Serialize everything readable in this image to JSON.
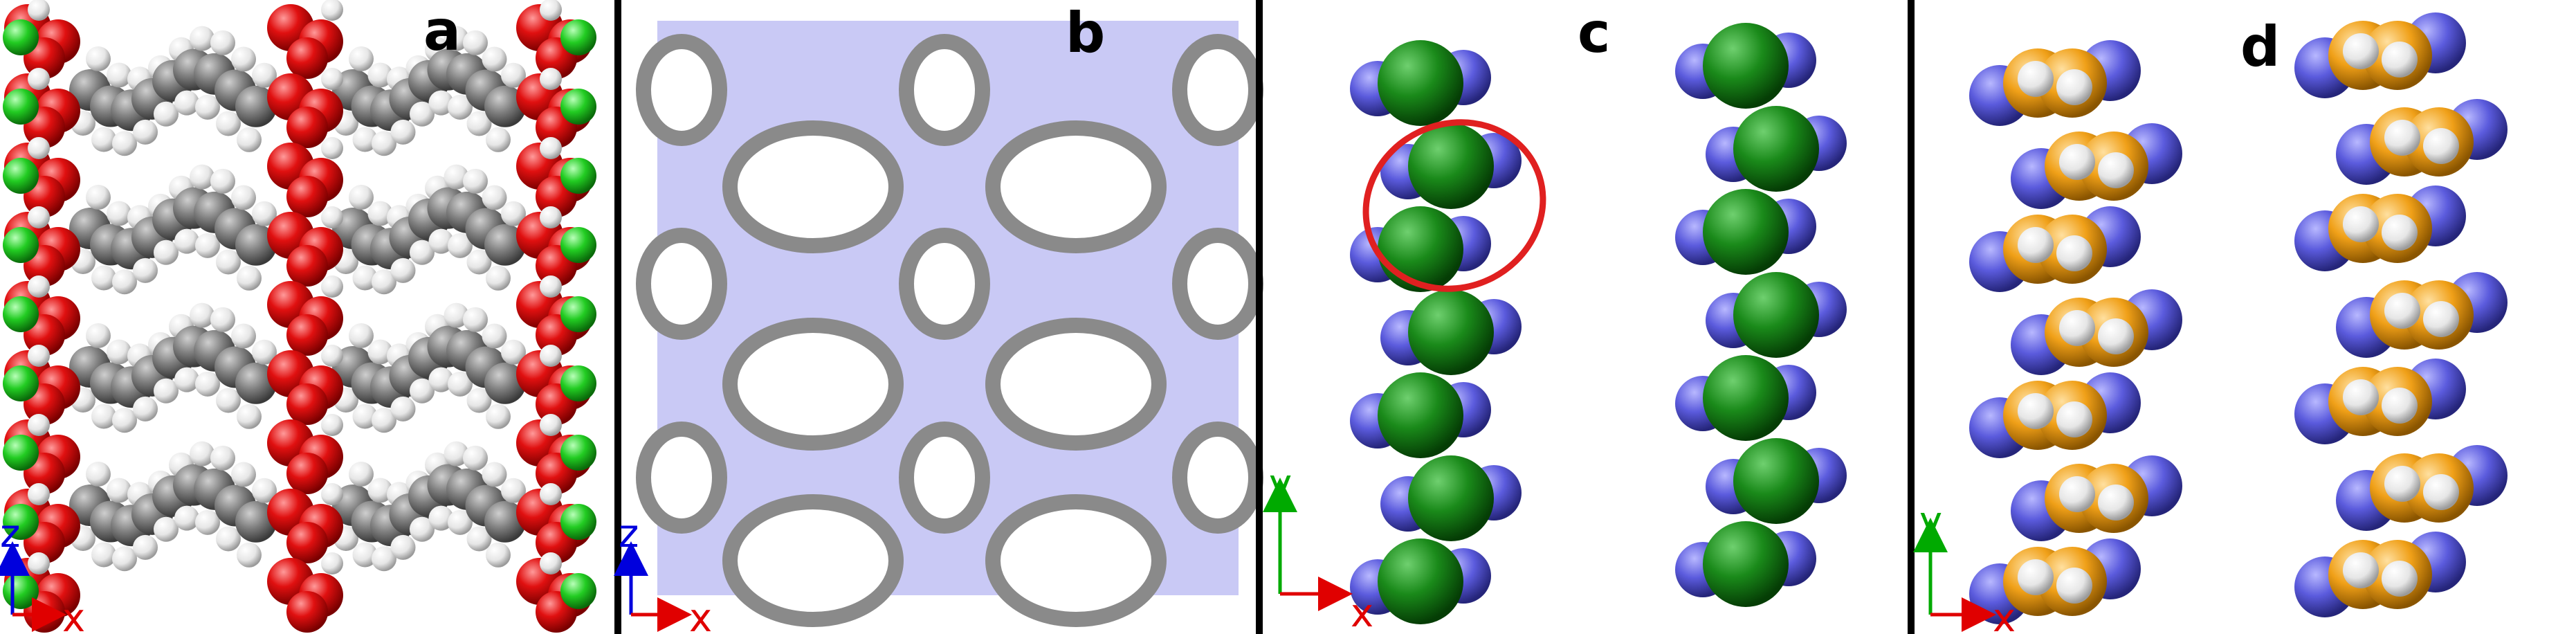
{
  "panels": [
    {
      "id": "a",
      "label": "a",
      "axes": {
        "vertical": "z",
        "horizontal": "x"
      }
    },
    {
      "id": "b",
      "label": "b",
      "axes": {
        "vertical": "z",
        "horizontal": "x"
      }
    },
    {
      "id": "c",
      "label": "c",
      "axes": {
        "vertical": "y",
        "horizontal": "x"
      }
    },
    {
      "id": "d",
      "label": "d",
      "axes": {
        "vertical": "y",
        "horizontal": "x"
      }
    }
  ],
  "colors": {
    "oxygen_red": "#e01010",
    "carbon_gray": "#808080",
    "hydrogen_white": "#f2f2f2",
    "chlorine_green": "#22cc22",
    "dark_green": "#1a8a1a",
    "nitrogen_blue": "#5b5bdd",
    "orange": "#f0a018",
    "pore_lavender": "#c9c9f5",
    "surface_gray": "#8a8a8a",
    "axis_red": "#e00000",
    "axis_green": "#00aa00",
    "axis_blue": "#0000dd",
    "ring_red": "#e02020"
  }
}
